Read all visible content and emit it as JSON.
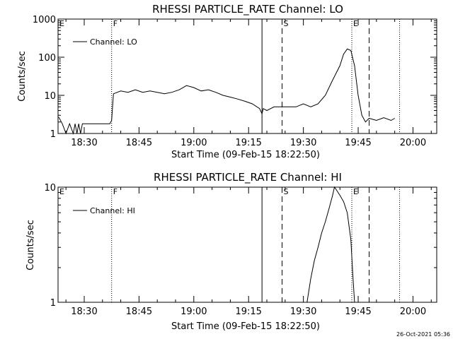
{
  "footer": {
    "timestamp": "26-Oct-2021 05:36"
  },
  "chart_data": [
    {
      "type": "line",
      "title": "RHESSI PARTICLE_RATE Channel: LO",
      "ylabel": "Counts/sec",
      "xlabel": "Start Time (09-Feb-15 18:22:50)",
      "yscale": "log",
      "ylim": [
        1,
        1000
      ],
      "y_ticks": [
        1,
        10,
        100,
        1000
      ],
      "y_tick_labels": [
        "1",
        "10",
        "100",
        "1000"
      ],
      "xlim": [
        "18:22:50",
        "20:06:30"
      ],
      "x_ticks": [
        "18:30",
        "18:45",
        "19:00",
        "19:15",
        "19:30",
        "19:45",
        "20:00"
      ],
      "legend": {
        "placement": "top-left",
        "entries": [
          "Channel: LO"
        ]
      },
      "markers": [
        {
          "label": "E",
          "time": "18:22:50",
          "style": "none"
        },
        {
          "label": "F",
          "time": "18:37:30",
          "style": "dotted"
        },
        {
          "label": "",
          "time": "19:18:40",
          "style": "solid"
        },
        {
          "label": "S",
          "time": "19:24:10",
          "style": "dashed"
        },
        {
          "label": "E",
          "time": "19:43:15",
          "style": "dotted"
        },
        {
          "label": "",
          "time": "19:48:00",
          "style": "dashed"
        },
        {
          "label": "",
          "time": "19:56:20",
          "style": "dotted"
        }
      ],
      "series": [
        {
          "name": "Channel: LO",
          "x": [
            "18:23:00",
            "18:24:00",
            "18:25:00",
            "18:26:00",
            "18:27:00",
            "18:27:30",
            "18:28:00",
            "18:28:30",
            "18:29:00",
            "18:29:30",
            "18:30:00",
            "18:31:00",
            "18:32:00",
            "18:33:00",
            "18:34:00",
            "18:35:00",
            "18:36:00",
            "18:37:00",
            "18:37:30",
            "18:38:00",
            "18:40:00",
            "18:42:00",
            "18:44:00",
            "18:46:00",
            "18:48:00",
            "18:50:00",
            "18:52:00",
            "18:54:00",
            "18:56:00",
            "18:58:00",
            "19:00:00",
            "19:02:00",
            "19:04:00",
            "19:06:00",
            "19:08:00",
            "19:10:00",
            "19:12:00",
            "19:14:00",
            "19:16:00",
            "19:18:00",
            "19:18:40",
            "19:19:00",
            "19:20:00",
            "19:22:00",
            "19:24:00",
            "19:26:00",
            "19:28:00",
            "19:30:00",
            "19:32:00",
            "19:34:00",
            "19:36:00",
            "19:38:00",
            "19:40:00",
            "19:41:00",
            "19:42:00",
            "19:43:00",
            "19:44:00",
            "19:45:00",
            "19:46:00",
            "19:47:00",
            "19:48:00",
            "19:50:00",
            "19:52:00",
            "19:54:00",
            "19:55:00"
          ],
          "y": [
            2.7,
            1.8,
            1,
            1.8,
            1,
            1.8,
            1,
            1.8,
            1,
            1.8,
            1.8,
            1.8,
            1.8,
            1.8,
            1.8,
            1.8,
            1.8,
            1.8,
            2.2,
            11,
            13,
            12,
            14,
            12,
            13,
            12,
            11,
            12,
            14,
            18,
            16,
            13,
            14,
            12,
            10,
            9,
            8,
            7,
            6,
            4.5,
            3.3,
            4.5,
            4,
            5,
            5,
            5,
            5,
            6,
            5,
            6,
            10,
            25,
            60,
            120,
            165,
            150,
            60,
            10,
            3,
            2,
            2.5,
            2.2,
            2.6,
            2.2,
            2.5
          ]
        }
      ]
    },
    {
      "type": "line",
      "title": "RHESSI PARTICLE_RATE Channel: HI",
      "ylabel": "Counts/sec",
      "xlabel": "Start Time (09-Feb-15 18:22:50)",
      "yscale": "log",
      "ylim": [
        1,
        10
      ],
      "y_ticks": [
        1,
        10
      ],
      "y_tick_labels": [
        "1",
        "10"
      ],
      "xlim": [
        "18:22:50",
        "20:06:30"
      ],
      "x_ticks": [
        "18:30",
        "18:45",
        "19:00",
        "19:15",
        "19:30",
        "19:45",
        "20:00"
      ],
      "legend": {
        "placement": "top-left",
        "entries": [
          "Channel: HI"
        ]
      },
      "markers": [
        {
          "label": "E",
          "time": "18:22:50",
          "style": "none"
        },
        {
          "label": "F",
          "time": "18:37:30",
          "style": "dotted"
        },
        {
          "label": "",
          "time": "19:18:40",
          "style": "solid"
        },
        {
          "label": "S",
          "time": "19:24:10",
          "style": "dashed"
        },
        {
          "label": "E",
          "time": "19:43:15",
          "style": "dotted"
        },
        {
          "label": "",
          "time": "19:48:00",
          "style": "dashed"
        },
        {
          "label": "",
          "time": "19:56:20",
          "style": "dotted"
        }
      ],
      "series": [
        {
          "name": "Channel: HI",
          "x": [
            "19:31:00",
            "19:32:00",
            "19:33:00",
            "19:34:00",
            "19:35:00",
            "19:36:00",
            "19:37:00",
            "19:38:00",
            "19:38:30",
            "19:39:00",
            "19:40:00",
            "19:41:00",
            "19:42:00",
            "19:43:00",
            "19:43:30",
            "19:44:00"
          ],
          "y": [
            1.0,
            1.6,
            2.3,
            3.0,
            4.0,
            5.0,
            6.5,
            8.5,
            10,
            9.5,
            8.5,
            7.5,
            6.0,
            3.5,
            1.8,
            1.0
          ]
        }
      ]
    }
  ]
}
